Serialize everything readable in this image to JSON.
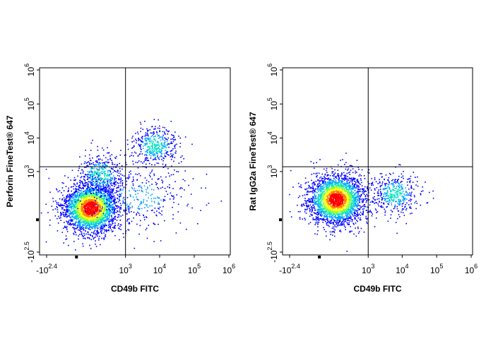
{
  "chart_data": [
    {
      "type": "scatter",
      "subtype": "flow-cytometry-density-dot-plot",
      "xlabel": "CD49b FITC",
      "ylabel": "Perforin  FineTest® 647",
      "x_scale": "biexponential",
      "y_scale": "biexponential",
      "x_ticks": [
        {
          "base": "-10",
          "exp": "2.4",
          "value": -251
        },
        {
          "base": "10",
          "exp": "3",
          "value": 1000
        },
        {
          "base": "10",
          "exp": "4",
          "value": 10000
        },
        {
          "base": "10",
          "exp": "5",
          "value": 100000
        },
        {
          "base": "10",
          "exp": "6",
          "value": 1000000
        }
      ],
      "y_ticks": [
        {
          "base": "-10",
          "exp": "2.5",
          "value": -316
        },
        {
          "base": "10",
          "exp": "3",
          "value": 1000
        },
        {
          "base": "10",
          "exp": "4",
          "value": 10000
        },
        {
          "base": "10",
          "exp": "5",
          "value": 100000
        },
        {
          "base": "10",
          "exp": "6",
          "value": 1000000
        }
      ],
      "quadrant_gate": {
        "x": 1000,
        "y": 1400
      },
      "populations": [
        {
          "x_center": 60,
          "y_center": 50,
          "density": "high"
        },
        {
          "x_center": 150,
          "y_center": 800,
          "density": "medium"
        },
        {
          "x_center": 2500,
          "y_center": 150,
          "density": "low"
        },
        {
          "x_center": 7000,
          "y_center": 6000,
          "density": "medium"
        }
      ]
    },
    {
      "type": "scatter",
      "subtype": "flow-cytometry-density-dot-plot",
      "xlabel": "CD49b FITC",
      "ylabel": "Rat IgG2a  FineTest® 647",
      "x_scale": "biexponential",
      "y_scale": "biexponential",
      "x_ticks": [
        {
          "base": "-10",
          "exp": "2.4",
          "value": -251
        },
        {
          "base": "10",
          "exp": "3",
          "value": 1000
        },
        {
          "base": "10",
          "exp": "4",
          "value": 10000
        },
        {
          "base": "10",
          "exp": "5",
          "value": 100000
        },
        {
          "base": "10",
          "exp": "6",
          "value": 1000000
        }
      ],
      "y_ticks": [
        {
          "base": "-10",
          "exp": "2.5",
          "value": -316
        },
        {
          "base": "10",
          "exp": "3",
          "value": 1000
        },
        {
          "base": "10",
          "exp": "4",
          "value": 10000
        },
        {
          "base": "10",
          "exp": "5",
          "value": 100000
        },
        {
          "base": "10",
          "exp": "6",
          "value": 1000000
        }
      ],
      "quadrant_gate": {
        "x": 1000,
        "y": 1400
      },
      "populations": [
        {
          "x_center": 80,
          "y_center": 120,
          "density": "high"
        },
        {
          "x_center": 6000,
          "y_center": 200,
          "density": "medium"
        }
      ]
    }
  ],
  "colors": {
    "density_scale": [
      "#0000ff",
      "#00a0ff",
      "#00e0c0",
      "#80ff40",
      "#ffff00",
      "#ff8000",
      "#ff0000"
    ],
    "axes": "#000000",
    "gate": "#000000"
  }
}
